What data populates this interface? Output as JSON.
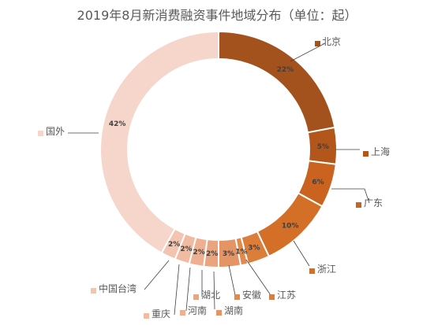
{
  "chart_data": {
    "type": "pie",
    "title": "2019年8月新消费融资事件地域分布（单位：起）",
    "donut": true,
    "labels": [
      "北京",
      "上海",
      "广东",
      "浙江",
      "江苏",
      "安徽",
      "湖南",
      "湖北",
      "河南",
      "重庆",
      "中国台湾",
      "国外"
    ],
    "values": [
      22,
      5,
      6,
      10,
      3,
      1,
      3,
      2,
      2,
      2,
      2,
      42
    ],
    "value_labels": [
      "22%",
      "5%",
      "6%",
      "10%",
      "3%",
      "1%",
      "3%",
      "2%",
      "2%",
      "2%",
      "2%",
      "42%"
    ],
    "colors": [
      "#a3521d",
      "#b3561b",
      "#c9631f",
      "#d46f27",
      "#dc7e3a",
      "#e18a4d",
      "#e59565",
      "#eaa57f",
      "#eeb091",
      "#f1bba1",
      "#f3c5b1",
      "#f6d6cb"
    ],
    "legend": "outside-labels"
  }
}
